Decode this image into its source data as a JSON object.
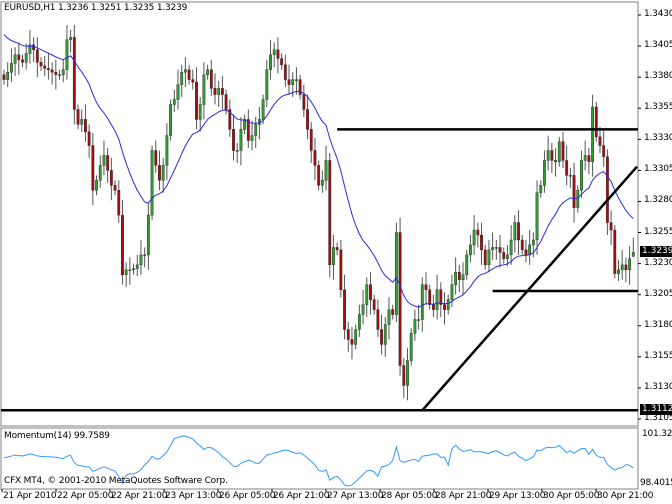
{
  "chart_data": {
    "type": "candlestick",
    "symbol_header": "EURUSD,H1  1.3236 1.3251 1.3235 1.3239",
    "timeframe": "H1",
    "last_bar": {
      "open": 1.3236,
      "high": 1.3251,
      "low": 1.3235,
      "close": 1.3239
    },
    "closes": [
      1.3378,
      1.3384,
      1.3391,
      1.3398,
      1.3394,
      1.3392,
      1.3399,
      1.3406,
      1.3402,
      1.3392,
      1.3389,
      1.3387,
      1.3386,
      1.3384,
      1.3382,
      1.3382,
      1.3386,
      1.341,
      1.3412,
      1.3354,
      1.3342,
      1.3346,
      1.3336,
      1.3325,
      1.3289,
      1.3297,
      1.3309,
      1.3317,
      1.3305,
      1.3293,
      1.3289,
      1.3269,
      1.3221,
      1.3225,
      1.3225,
      1.3226,
      1.3229,
      1.3237,
      1.3237,
      1.3269,
      1.3321,
      1.3309,
      1.3297,
      1.3309,
      1.3333,
      1.3358,
      1.3362,
      1.3374,
      1.3384,
      1.3386,
      1.3378,
      1.3376,
      1.3346,
      1.3358,
      1.3382,
      1.3386,
      1.3371,
      1.3366,
      1.3371,
      1.3366,
      1.3354,
      1.3338,
      1.3321,
      1.3321,
      1.3338,
      1.3346,
      1.3329,
      1.3333,
      1.3342,
      1.3346,
      1.3362,
      1.3386,
      1.3398,
      1.3402,
      1.3395,
      1.339,
      1.3378,
      1.3374,
      1.3378,
      1.3378,
      1.3366,
      1.3354,
      1.3338,
      1.3321,
      1.3309,
      1.3293,
      1.3297,
      1.3313,
      1.3229,
      1.3243,
      1.3241,
      1.3209,
      1.3177,
      1.3169,
      1.3165,
      1.3177,
      1.3189,
      1.3197,
      1.3213,
      1.3201,
      1.3193,
      1.3177,
      1.3165,
      1.3181,
      1.3193,
      1.3189,
      1.3255,
      1.3148,
      1.3132,
      1.3152,
      1.3174,
      1.3185,
      1.3185,
      1.3213,
      1.3209,
      1.3197,
      1.3193,
      1.3209,
      1.3197,
      1.3193,
      1.3201,
      1.3213,
      1.3223,
      1.3217,
      1.3221,
      1.3237,
      1.3245,
      1.3257,
      1.3253,
      1.3241,
      1.3229,
      1.3241,
      1.3243,
      1.3243,
      1.3239,
      1.3234,
      1.3237,
      1.3249,
      1.3263,
      1.3249,
      1.3241,
      1.3237,
      1.3245,
      1.3249,
      1.3287,
      1.3293,
      1.3313,
      1.3321,
      1.3313,
      1.3312,
      1.3328,
      1.3313,
      1.3301,
      1.3301,
      1.3275,
      1.3289,
      1.3313,
      1.3317,
      1.3312,
      1.3356,
      1.3332,
      1.3325,
      1.3316,
      1.3263,
      1.3257,
      1.3222,
      1.3225,
      1.3229,
      1.3225,
      1.3234,
      1.3239
    ],
    "yaxis": {
      "min": 1.3094,
      "max": 1.3442,
      "ticks": [
        "1.3430",
        "1.3405",
        "1.3380",
        "1.3355",
        "1.3330",
        "1.3305",
        "1.3280",
        "1.3255",
        "1.3230",
        "1.3205",
        "1.3180",
        "1.3155",
        "1.3130",
        "1.3105"
      ]
    },
    "xaxis_ticks": [
      "21 Apr 2010",
      "22 Apr 05:00",
      "22 Apr 21:00",
      "23 Apr 13:00",
      "26 Apr 05:00",
      "26 Apr 21:00",
      "27 Apr 13:00",
      "28 Apr 05:00",
      "28 Apr 21:00",
      "29 Apr 13:00",
      "30 Apr 05:00",
      "30 Apr 21:00"
    ],
    "price_tags": {
      "current": "1.3239",
      "support_level": "1.3112"
    },
    "moving_average": {
      "color": "#2b2bdc"
    },
    "indicator": {
      "label": "Momentum(14) 99.7589",
      "max_label": "101.32",
      "min_label": "98.4015",
      "color": "#3399ff"
    },
    "drawn_lines": [
      {
        "kind": "horizontal",
        "price": 1.3338,
        "from_bar": 90
      },
      {
        "kind": "horizontal",
        "price": 1.3208,
        "from_bar": 132
      },
      {
        "kind": "horizontal",
        "price": 1.3112,
        "from_bar": 0
      },
      {
        "kind": "trend",
        "from_bar": 113,
        "from_price": 1.3112,
        "to_bar": 171,
        "to_price": 1.3308
      }
    ],
    "colors": {
      "bull": "#2e9e2e",
      "bear": "#a01010",
      "wick": "#555555",
      "lines": "#000000"
    }
  },
  "footer": {
    "copyright": "CFX MT4, © 2001-2010 MetaQuotes Software Corp."
  }
}
